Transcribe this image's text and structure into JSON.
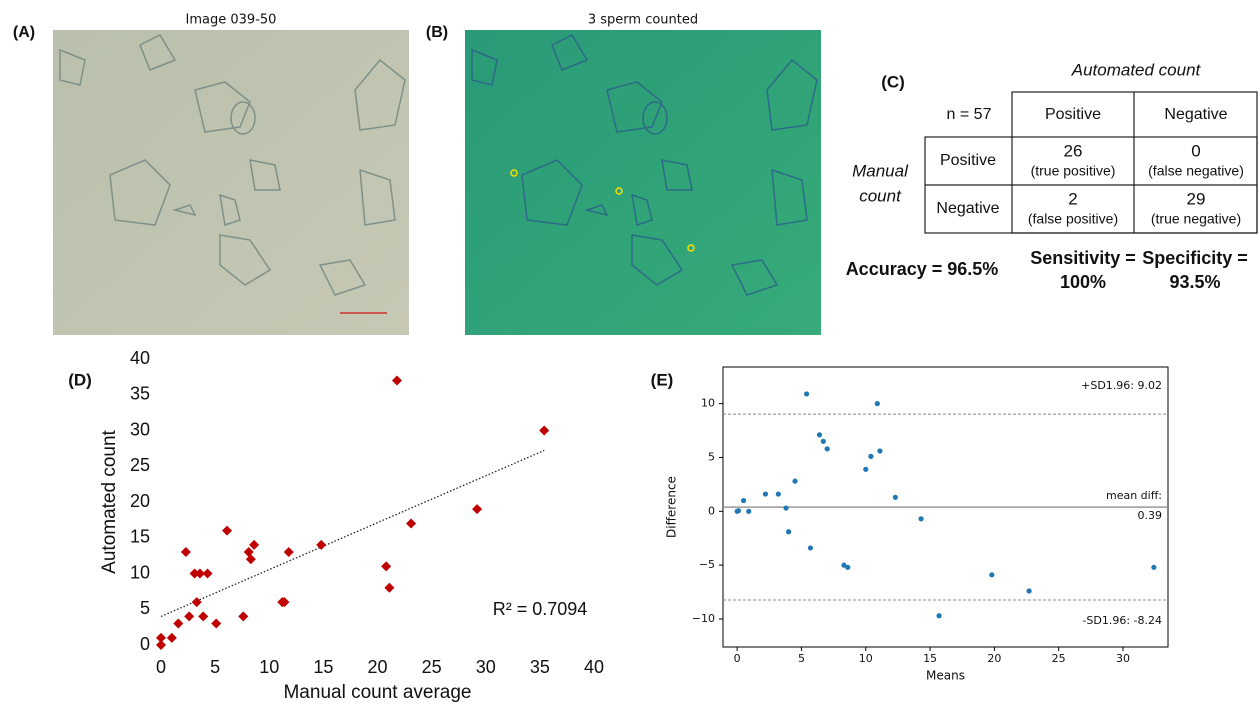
{
  "figure": {
    "a": {
      "label": "(A)",
      "title": "Image 039-50"
    },
    "b": {
      "label": "(B)",
      "title": "3 sperm counted"
    },
    "c": {
      "label": "(C)",
      "column_title": "Automated count",
      "row_title": [
        "Manual",
        "count"
      ],
      "n": "n = 57",
      "columns": [
        "Positive",
        "Negative"
      ],
      "rows": [
        {
          "name": "Positive",
          "cells": [
            [
              26,
              "(true positive)"
            ],
            [
              0,
              "(false negative)"
            ]
          ]
        },
        {
          "name": "Negative",
          "cells": [
            [
              2,
              "(false positive)"
            ],
            [
              29,
              "(true negative)"
            ]
          ]
        }
      ],
      "metrics": [
        [
          "Accuracy = 96.5%"
        ],
        [
          "Sensitivity =",
          "100%"
        ],
        [
          "Specificity =",
          "93.5%"
        ]
      ]
    }
  },
  "chart_data": [
    {
      "type": "scatter",
      "panel_label": "(D)",
      "x_label": "Manual count average",
      "y_label": "Automated count",
      "x": [
        0,
        0,
        1,
        1.6,
        2.3,
        2.6,
        3.1,
        3.3,
        3.6,
        3.9,
        4.3,
        5.1,
        6.1,
        7.6,
        8.1,
        8.3,
        8.6,
        11.2,
        11.4,
        11.8,
        14.8,
        20.8,
        21.1,
        21.8,
        23.1,
        29.2,
        35.4
      ],
      "values": [
        0,
        1,
        1,
        3,
        13,
        4,
        10,
        6,
        10,
        4,
        10,
        3,
        16,
        4,
        13,
        12,
        14,
        6,
        6,
        13,
        14,
        11,
        8,
        37,
        17,
        19,
        30
      ],
      "color": "#c00000",
      "marker": "diamond",
      "xlim": [
        0,
        40
      ],
      "ylim": [
        0,
        40
      ],
      "xticks": [
        0,
        5,
        10,
        15,
        20,
        25,
        30,
        35,
        40
      ],
      "yticks": [
        0,
        5,
        10,
        15,
        20,
        25,
        30,
        35,
        40
      ],
      "trendline": true,
      "annotation": "R² = 0.7094"
    },
    {
      "type": "scatter",
      "panel_label": "(E)",
      "x_label": "Means",
      "y_label": "Difference",
      "x": [
        0,
        0.1,
        0.5,
        0.9,
        2.2,
        3.2,
        3.8,
        4.0,
        4.5,
        5.4,
        5.7,
        6.4,
        6.7,
        7.0,
        8.3,
        8.6,
        10.0,
        10.4,
        10.9,
        11.1,
        12.3,
        14.3,
        15.7,
        19.8,
        22.7,
        32.4
      ],
      "values": [
        0,
        0.05,
        1,
        0,
        1.6,
        1.6,
        0.3,
        -1.9,
        2.8,
        10.9,
        -3.4,
        7.1,
        6.5,
        5.8,
        -5.0,
        -5.2,
        3.9,
        5.1,
        10.0,
        5.6,
        1.3,
        -0.7,
        -9.7,
        -5.9,
        -7.4,
        -5.2
      ],
      "color": "#1f77b4",
      "marker": "circle",
      "xlim": [
        -1.1,
        33.5
      ],
      "ylim": [
        -12.6,
        13.4
      ],
      "xticks": [
        0,
        5,
        10,
        15,
        20,
        25,
        30
      ],
      "yticks": [
        {
          "value": -10,
          "label": "−10"
        },
        {
          "value": -5,
          "label": "−5"
        },
        0,
        5,
        10
      ],
      "frame": true,
      "hlines": [
        {
          "value": 9.02,
          "label": [
            "+SD1.96: 9.02"
          ],
          "style": "dashed"
        },
        {
          "value": 0.39,
          "label": [
            "mean diff:",
            "0.39"
          ],
          "style": "solid"
        },
        {
          "value": -8.24,
          "label": [
            "-SD1.96: -8.24"
          ],
          "style": "dashed"
        }
      ]
    }
  ]
}
